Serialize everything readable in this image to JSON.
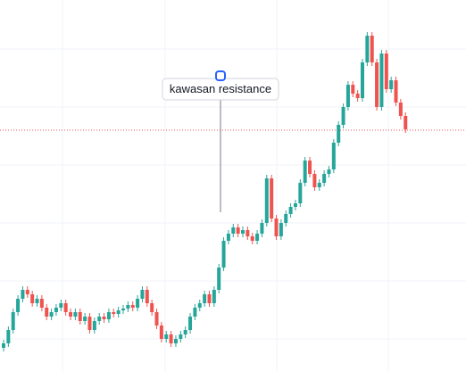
{
  "chart_data": {
    "type": "candlestick",
    "ylim": [
      0,
      416
    ],
    "up_color": "#26a69a",
    "down_color": "#ef5350",
    "ref_line": 270,
    "ref_color": "#ef5350",
    "annotation": "kawasan resistance",
    "open": [
      26,
      31,
      46,
      66,
      81,
      91,
      86,
      76,
      81,
      71,
      61,
      66,
      71,
      76,
      66,
      61,
      66,
      56,
      61,
      46,
      56,
      61,
      58,
      66,
      64,
      68,
      70,
      74,
      71,
      81,
      91,
      76,
      66,
      51,
      36,
      41,
      31,
      36,
      41,
      46,
      61,
      71,
      76,
      86,
      76,
      91,
      116,
      146,
      154,
      161,
      154,
      158,
      151,
      146,
      154,
      166,
      216,
      171,
      151,
      166,
      176,
      184,
      188,
      211,
      236,
      221,
      206,
      211,
      221,
      226,
      256,
      276,
      296,
      321,
      311,
      306,
      346,
      376,
      346,
      296,
      356,
      316,
      326,
      301,
      286
    ],
    "high": [
      35,
      50,
      70,
      85,
      95,
      95,
      90,
      85,
      85,
      75,
      70,
      75,
      80,
      80,
      70,
      70,
      70,
      65,
      65,
      60,
      65,
      65,
      70,
      70,
      72,
      74,
      78,
      78,
      85,
      95,
      95,
      80,
      70,
      55,
      45,
      45,
      40,
      45,
      50,
      65,
      75,
      80,
      90,
      90,
      95,
      120,
      150,
      158,
      165,
      165,
      162,
      162,
      155,
      158,
      170,
      220,
      220,
      175,
      170,
      180,
      188,
      192,
      215,
      240,
      240,
      225,
      215,
      225,
      230,
      260,
      280,
      300,
      325,
      325,
      315,
      350,
      380,
      380,
      350,
      360,
      360,
      330,
      330,
      305,
      290
    ],
    "low": [
      22,
      27,
      42,
      62,
      77,
      82,
      72,
      72,
      67,
      57,
      57,
      62,
      67,
      62,
      57,
      57,
      52,
      52,
      42,
      42,
      52,
      54,
      54,
      60,
      60,
      64,
      66,
      67,
      67,
      77,
      72,
      62,
      47,
      32,
      32,
      27,
      27,
      32,
      37,
      42,
      57,
      67,
      72,
      72,
      72,
      87,
      112,
      142,
      150,
      150,
      150,
      147,
      142,
      142,
      150,
      162,
      167,
      147,
      147,
      162,
      172,
      180,
      184,
      207,
      217,
      202,
      202,
      207,
      217,
      222,
      252,
      272,
      292,
      307,
      302,
      302,
      342,
      342,
      292,
      292,
      312,
      312,
      297,
      282,
      267
    ],
    "close": [
      31,
      46,
      66,
      81,
      91,
      86,
      76,
      81,
      71,
      61,
      66,
      71,
      76,
      66,
      61,
      66,
      56,
      61,
      46,
      56,
      61,
      58,
      66,
      64,
      68,
      70,
      74,
      71,
      81,
      91,
      76,
      66,
      51,
      36,
      41,
      31,
      36,
      41,
      46,
      61,
      71,
      76,
      86,
      76,
      91,
      116,
      146,
      154,
      161,
      154,
      158,
      151,
      146,
      154,
      166,
      216,
      171,
      151,
      166,
      176,
      184,
      188,
      211,
      236,
      221,
      206,
      211,
      221,
      226,
      256,
      276,
      296,
      321,
      311,
      306,
      346,
      376,
      346,
      296,
      356,
      316,
      326,
      301,
      286,
      271
    ]
  }
}
